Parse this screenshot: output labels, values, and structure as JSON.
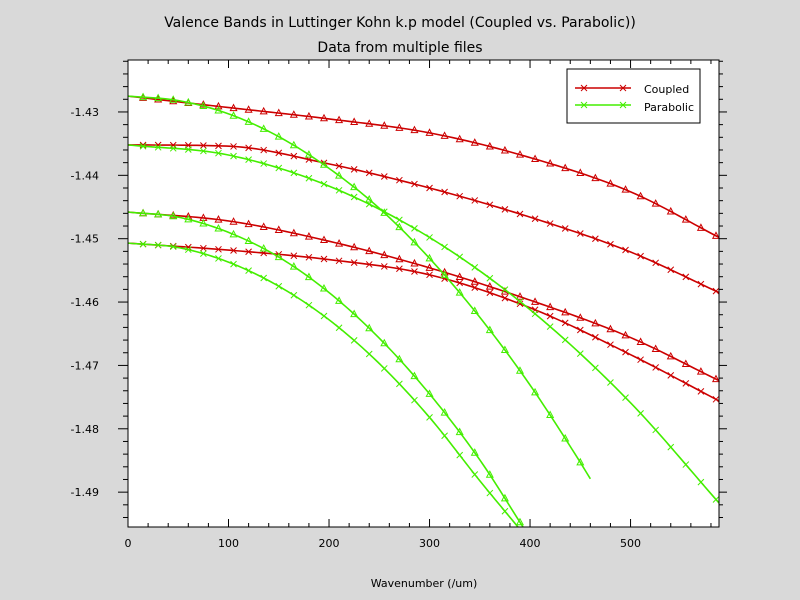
{
  "chart_data": {
    "type": "line",
    "title": "Valence Bands in Luttinger Kohn k.p model (Coupled vs. Parabolic))",
    "subtitle": "Data from multiple files",
    "xlabel": "Wavenumber (/um)",
    "ylabel": "",
    "xlim": [
      0,
      588
    ],
    "ylim": [
      -1.4955,
      -1.4218
    ],
    "x_ticks": [
      0,
      100,
      200,
      300,
      400,
      500
    ],
    "y_ticks": [
      -1.49,
      -1.48,
      -1.47,
      -1.46,
      -1.45,
      -1.44,
      -1.43
    ],
    "x_tick_labels": [
      "0",
      "100",
      "200",
      "300",
      "400",
      "500"
    ],
    "y_tick_labels": [
      "-1.49",
      "-1.48",
      "-1.47",
      "-1.46",
      "-1.45",
      "-1.44",
      "-1.43"
    ],
    "grid": false,
    "legend_position": "top-right",
    "legend": [
      "Coupled",
      "Parabolic"
    ],
    "colors": {
      "Coupled": "#cc0000",
      "Parabolic": "#44ee00",
      "background": "#d9d9d9",
      "plot_bg": "#ffffff"
    },
    "series": [
      {
        "group": "Coupled",
        "marker": "triangle",
        "x": [
          0,
          100,
          200,
          300,
          400,
          500,
          588
        ],
        "y": [
          -1.4275,
          -1.4293,
          -1.4311,
          -1.4333,
          -1.4372,
          -1.4426,
          -1.4498
        ]
      },
      {
        "group": "Coupled",
        "marker": "x",
        "x": [
          0,
          100,
          200,
          300,
          400,
          500,
          588
        ],
        "y": [
          -1.4352,
          -1.4354,
          -1.4382,
          -1.442,
          -1.4466,
          -1.4521,
          -1.4585
        ]
      },
      {
        "group": "Coupled",
        "marker": "triangle",
        "x": [
          0,
          100,
          200,
          300,
          400,
          500,
          588
        ],
        "y": [
          -1.4458,
          -1.4472,
          -1.4504,
          -1.4546,
          -1.4597,
          -1.4656,
          -1.4724
        ]
      },
      {
        "group": "Coupled",
        "marker": "x",
        "x": [
          0,
          100,
          200,
          300,
          400,
          500,
          588
        ],
        "y": [
          -1.4507,
          -1.4518,
          -1.4533,
          -1.4557,
          -1.4609,
          -1.4683,
          -1.4756
        ]
      },
      {
        "group": "Parabolic",
        "marker": "triangle",
        "x": [
          0,
          50,
          100,
          150,
          200,
          250,
          300,
          350,
          400,
          450,
          460
        ],
        "y": [
          -1.4275,
          -1.4282,
          -1.4303,
          -1.4339,
          -1.4389,
          -1.4452,
          -1.4531,
          -1.4624,
          -1.4731,
          -1.4853,
          -1.4879
        ]
      },
      {
        "group": "Parabolic",
        "marker": "x",
        "x": [
          0,
          100,
          200,
          300,
          400,
          500,
          588
        ],
        "y": [
          -1.4352,
          -1.4368,
          -1.4417,
          -1.4498,
          -1.4612,
          -1.4759,
          -1.4917
        ]
      },
      {
        "group": "Parabolic",
        "marker": "triangle",
        "x": [
          0,
          50,
          100,
          150,
          200,
          250,
          300,
          350,
          393
        ],
        "y": [
          -1.4458,
          -1.4466,
          -1.449,
          -1.4529,
          -1.4585,
          -1.4657,
          -1.4745,
          -1.4849,
          -1.4955
        ]
      },
      {
        "group": "Parabolic",
        "marker": "x",
        "x": [
          0,
          50,
          100,
          150,
          200,
          250,
          300,
          350,
          388
        ],
        "y": [
          -1.4507,
          -1.4514,
          -1.4537,
          -1.4575,
          -1.4628,
          -1.4697,
          -1.4782,
          -1.4882,
          -1.4955
        ]
      }
    ]
  }
}
